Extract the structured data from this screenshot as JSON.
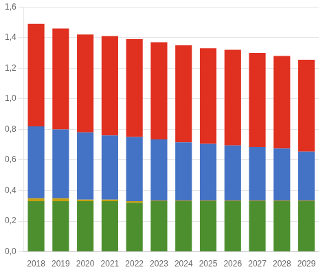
{
  "chart_data": {
    "type": "bar",
    "stacked": true,
    "grid": true,
    "categories": [
      "2018",
      "2019",
      "2020",
      "2021",
      "2022",
      "2023",
      "2024",
      "2025",
      "2026",
      "2027",
      "2028",
      "2029"
    ],
    "series": [
      {
        "color": "#4d8f2e",
        "values": [
          0.33,
          0.33,
          0.33,
          0.33,
          0.32,
          0.33,
          0.33,
          0.33,
          0.33,
          0.33,
          0.33,
          0.33
        ]
      },
      {
        "color": "#c8a010",
        "values": [
          0.02,
          0.02,
          0.01,
          0.01,
          0.01,
          0.005,
          0.005,
          0.005,
          0.005,
          0.005,
          0.005,
          0.005
        ]
      },
      {
        "color": "#4472c4",
        "values": [
          0.47,
          0.45,
          0.44,
          0.42,
          0.42,
          0.4,
          0.38,
          0.37,
          0.36,
          0.35,
          0.34,
          0.32
        ]
      },
      {
        "color": "#e03020",
        "values": [
          0.67,
          0.66,
          0.64,
          0.65,
          0.64,
          0.635,
          0.635,
          0.625,
          0.625,
          0.615,
          0.605,
          0.6
        ]
      }
    ],
    "ylim": [
      0,
      1.6
    ],
    "yticks": [
      {
        "value": 0.0,
        "label": "0,0"
      },
      {
        "value": 0.2,
        "label": "0,2"
      },
      {
        "value": 0.4,
        "label": "0,4"
      },
      {
        "value": 0.6,
        "label": "0,6"
      },
      {
        "value": 0.8,
        "label": "0,8"
      },
      {
        "value": 1.0,
        "label": "1,0"
      },
      {
        "value": 1.2,
        "label": "1,2"
      },
      {
        "value": 1.4,
        "label": "1,4"
      },
      {
        "value": 1.6,
        "label": "1,6"
      }
    ]
  }
}
